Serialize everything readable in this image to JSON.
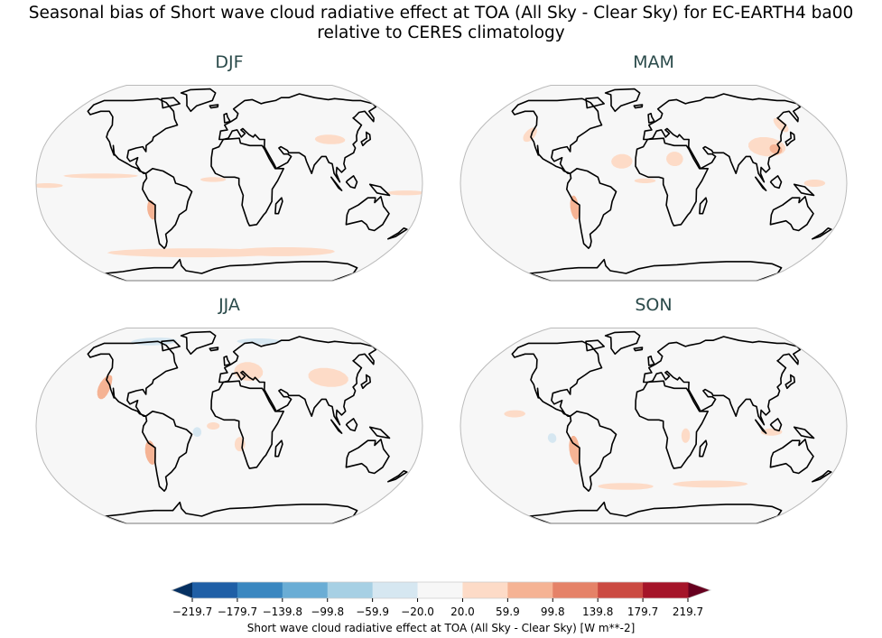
{
  "title_line1": "Seasonal bias of Short wave cloud radiative effect at TOA (All Sky - Clear Sky) for EC-EARTH4 ba00",
  "title_line2": "relative to CERES climatology",
  "panels": [
    {
      "label": "DJF"
    },
    {
      "label": "MAM"
    },
    {
      "label": "JJA"
    },
    {
      "label": "SON"
    }
  ],
  "projection": "Robinson",
  "colorbar": {
    "label": "Short wave cloud radiative effect at TOA (All Sky - Clear Sky) [W m**-2]",
    "ticks": [
      "−219.7",
      "−179.7",
      "−139.8",
      "−99.8",
      "−59.9",
      "−20.0",
      "20.0",
      "59.9",
      "99.8",
      "139.8",
      "179.7",
      "219.7"
    ],
    "colors": [
      "#1f5fa6",
      "#3a87c0",
      "#6aadd5",
      "#a7d0e4",
      "#d6e7f1",
      "#f7f7f7",
      "#fddbc7",
      "#f5b394",
      "#e58268",
      "#cb4a42",
      "#a51429"
    ],
    "under_color": "#053061",
    "over_color": "#67001f",
    "extend": "both"
  }
}
